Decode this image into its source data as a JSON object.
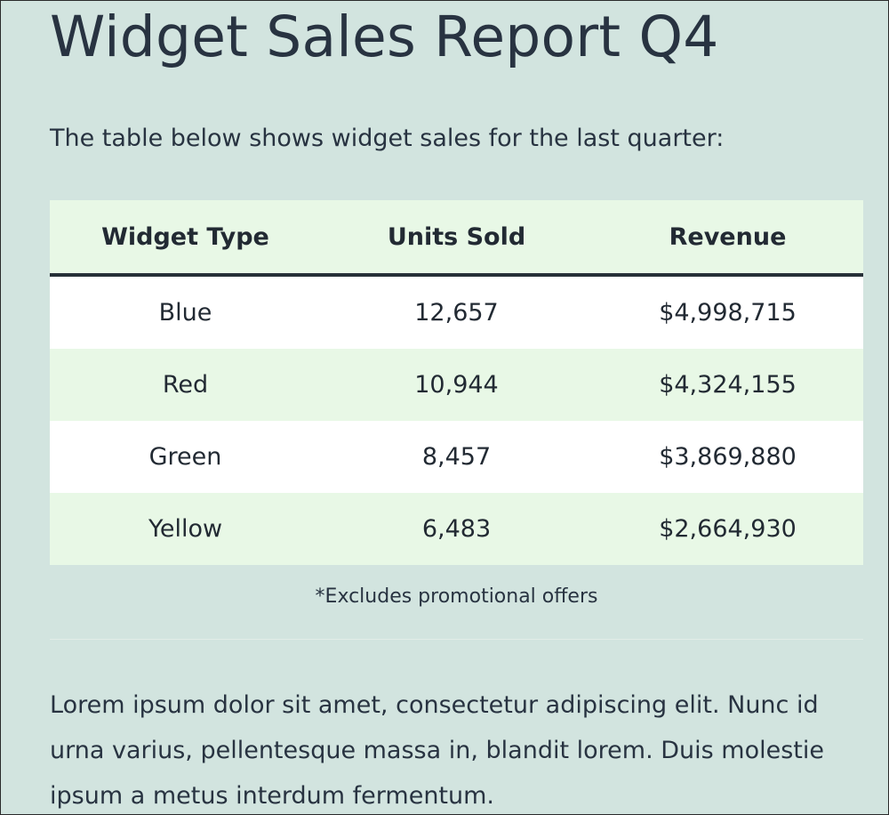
{
  "page": {
    "title": "Widget Sales Report Q4",
    "intro": "The table below shows widget sales for the last quarter:",
    "footnote": "*Excludes promotional offers",
    "body": "Lorem ipsum dolor sit amet, consectetur adipiscing elit. Nunc id urna varius, pellentesque massa in, blandit lorem. Duis molestie ipsum a metus interdum fermentum."
  },
  "table": {
    "headers": [
      "Widget Type",
      "Units Sold",
      "Revenue"
    ],
    "rows": [
      [
        "Blue",
        "12,657",
        "$4,998,715"
      ],
      [
        "Red",
        "10,944",
        "$4,324,155"
      ],
      [
        "Green",
        "8,457",
        "$3,869,880"
      ],
      [
        "Yellow",
        "6,483",
        "$2,664,930"
      ]
    ]
  },
  "colors": {
    "page_background": "#d2e4df",
    "table_header_background": "#e8f8e6",
    "row_stripe": "#e8f8e6",
    "row_plain": "#ffffff",
    "text": "#283341"
  }
}
